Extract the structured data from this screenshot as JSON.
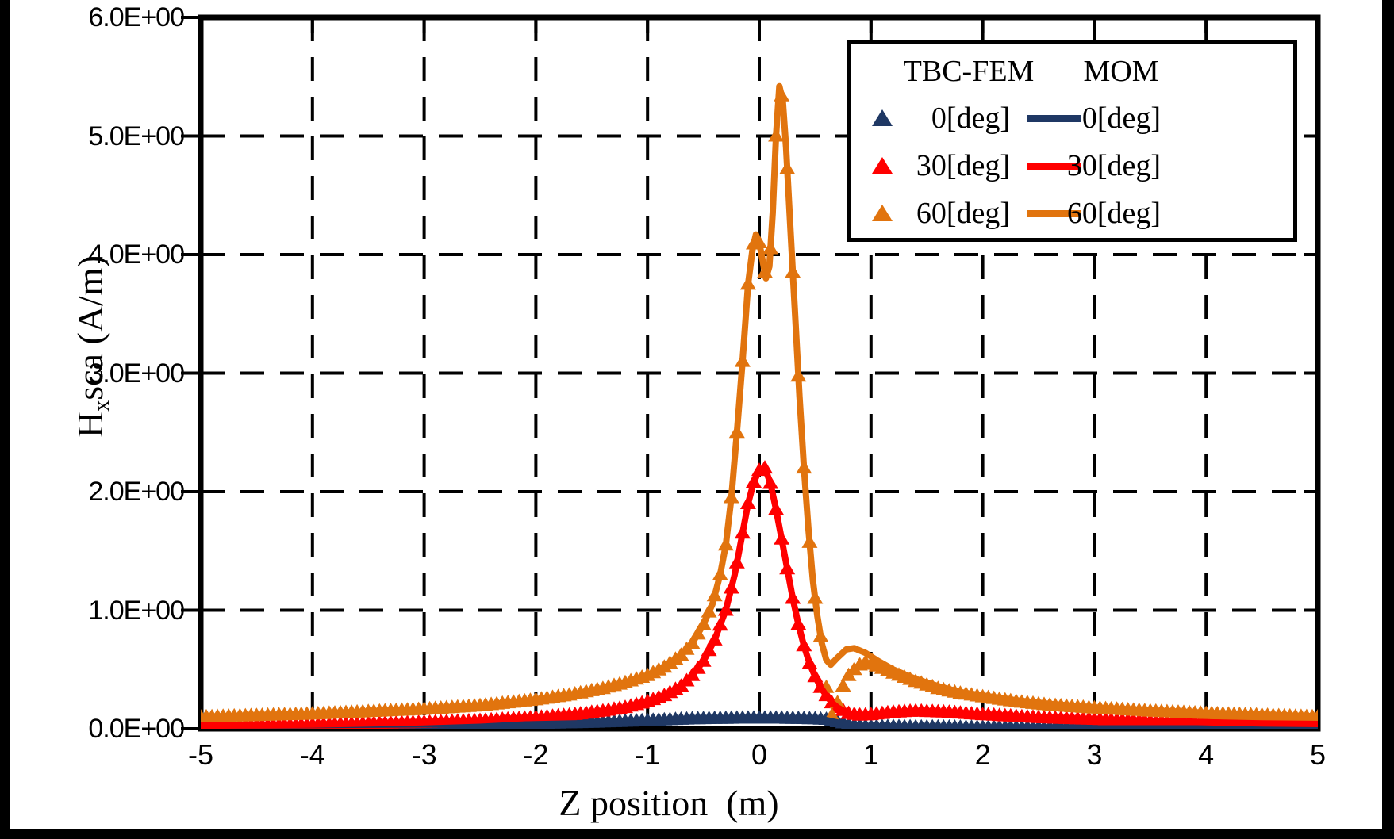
{
  "chart_data": {
    "type": "line",
    "title": "",
    "xlabel": "Z position  (m)",
    "ylabel_parts": {
      "base": "H",
      "sub": "x",
      "rest": "sca (A/m)"
    },
    "xlim": [
      -5,
      5
    ],
    "ylim": [
      0,
      6
    ],
    "x_ticks": {
      "values": [
        -5,
        -4,
        -3,
        -2,
        -1,
        0,
        1,
        2,
        3,
        4,
        5
      ],
      "labels": [
        "-5",
        "-4",
        "-3",
        "-2",
        "-1",
        "0",
        "1",
        "2",
        "3",
        "4",
        "5"
      ]
    },
    "y_ticks": {
      "values": [
        0,
        1,
        2,
        3,
        4,
        5,
        6
      ],
      "labels": [
        "0.0E+00",
        "1.0E+00",
        "2.0E+00",
        "3.0E+00",
        "4.0E+00",
        "5.0E+00",
        "6.0E+00"
      ]
    },
    "grid": {
      "style": "dashed",
      "x_lines": [
        -4,
        -3,
        -2,
        -1,
        0,
        1,
        2,
        3,
        4
      ],
      "y_lines": [
        1,
        2,
        3,
        4,
        5
      ]
    },
    "frame_color": "#000000",
    "background_color": "#FFFFFF",
    "page_border_color": "#000000",
    "legend": {
      "position": "top-right",
      "headers": [
        "TBC-FEM",
        "MOM"
      ],
      "rows": [
        {
          "fem_label": "0[deg]",
          "mom_label": "0[deg]",
          "color": "#1F3864"
        },
        {
          "fem_label": "30[deg]",
          "mom_label": "30[deg]",
          "color": "#FF0000"
        },
        {
          "fem_label": "60[deg]",
          "mom_label": "60[deg]",
          "color": "#E1740E"
        }
      ]
    },
    "marker": "triangle-up",
    "marker_step": 0.05,
    "series": [
      {
        "id": "fem-0deg",
        "group": "TBC-FEM",
        "label": "0[deg]",
        "render": "markers",
        "color": "#1F3864",
        "points": [
          [
            -5,
            0.02
          ],
          [
            -4,
            0.025
          ],
          [
            -3,
            0.03
          ],
          [
            -2.5,
            0.035
          ],
          [
            -2,
            0.045
          ],
          [
            -1.5,
            0.055
          ],
          [
            -1,
            0.07
          ],
          [
            -0.6,
            0.085
          ],
          [
            -0.2,
            0.09
          ],
          [
            0.2,
            0.09
          ],
          [
            0.5,
            0.085
          ],
          [
            0.6,
            0.08
          ],
          [
            0.7,
            0.06
          ],
          [
            0.8,
            0.04
          ],
          [
            0.9,
            0.025
          ],
          [
            1,
            0.02
          ],
          [
            1.5,
            0.015
          ],
          [
            2,
            0.012
          ],
          [
            3,
            0.01
          ],
          [
            4,
            0.01
          ],
          [
            5,
            0.01
          ]
        ]
      },
      {
        "id": "fem-30deg",
        "group": "TBC-FEM",
        "label": "30[deg]",
        "render": "markers",
        "color": "#FF0000",
        "points": [
          [
            -5,
            0.025
          ],
          [
            -4,
            0.035
          ],
          [
            -3,
            0.055
          ],
          [
            -2.5,
            0.07
          ],
          [
            -2,
            0.095
          ],
          [
            -1.7,
            0.115
          ],
          [
            -1.4,
            0.15
          ],
          [
            -1.2,
            0.18
          ],
          [
            -1,
            0.23
          ],
          [
            -0.85,
            0.28
          ],
          [
            -0.7,
            0.36
          ],
          [
            -0.6,
            0.45
          ],
          [
            -0.5,
            0.57
          ],
          [
            -0.4,
            0.75
          ],
          [
            -0.3,
            1.0
          ],
          [
            -0.22,
            1.3
          ],
          [
            -0.15,
            1.65
          ],
          [
            -0.1,
            1.9
          ],
          [
            -0.05,
            2.08
          ],
          [
            0,
            2.18
          ],
          [
            0.05,
            2.2
          ],
          [
            0.1,
            2.07
          ],
          [
            0.15,
            1.85
          ],
          [
            0.2,
            1.6
          ],
          [
            0.25,
            1.35
          ],
          [
            0.3,
            1.1
          ],
          [
            0.35,
            0.88
          ],
          [
            0.4,
            0.7
          ],
          [
            0.45,
            0.55
          ],
          [
            0.5,
            0.44
          ],
          [
            0.55,
            0.35
          ],
          [
            0.6,
            0.28
          ],
          [
            0.65,
            0.22
          ],
          [
            0.7,
            0.18
          ],
          [
            0.8,
            0.13
          ],
          [
            0.9,
            0.115
          ],
          [
            1,
            0.12
          ],
          [
            1.2,
            0.14
          ],
          [
            1.4,
            0.15
          ],
          [
            1.7,
            0.14
          ],
          [
            2,
            0.12
          ],
          [
            2.5,
            0.095
          ],
          [
            3,
            0.08
          ],
          [
            3.5,
            0.065
          ],
          [
            4,
            0.055
          ],
          [
            4.5,
            0.045
          ],
          [
            5,
            0.04
          ]
        ]
      },
      {
        "id": "fem-60deg",
        "group": "TBC-FEM",
        "label": "60[deg]",
        "render": "markers",
        "color": "#E1740E",
        "points": [
          [
            -5,
            0.1
          ],
          [
            -4,
            0.125
          ],
          [
            -3,
            0.165
          ],
          [
            -2.5,
            0.195
          ],
          [
            -2,
            0.245
          ],
          [
            -1.7,
            0.285
          ],
          [
            -1.4,
            0.34
          ],
          [
            -1.2,
            0.39
          ],
          [
            -1,
            0.45
          ],
          [
            -0.85,
            0.52
          ],
          [
            -0.7,
            0.62
          ],
          [
            -0.6,
            0.72
          ],
          [
            -0.5,
            0.88
          ],
          [
            -0.42,
            1.05
          ],
          [
            -0.35,
            1.3
          ],
          [
            -0.3,
            1.55
          ],
          [
            -0.25,
            1.95
          ],
          [
            -0.2,
            2.5
          ],
          [
            -0.15,
            3.1
          ],
          [
            -0.1,
            3.75
          ],
          [
            -0.06,
            4.05
          ],
          [
            -0.03,
            4.17
          ],
          [
            0,
            4.1
          ],
          [
            0.03,
            3.95
          ],
          [
            0.06,
            3.8
          ],
          [
            0.09,
            3.9
          ],
          [
            0.12,
            4.35
          ],
          [
            0.15,
            5.0
          ],
          [
            0.18,
            5.42
          ],
          [
            0.21,
            5.3
          ],
          [
            0.24,
            4.9
          ],
          [
            0.28,
            4.2
          ],
          [
            0.32,
            3.5
          ],
          [
            0.36,
            2.8
          ],
          [
            0.4,
            2.2
          ],
          [
            0.44,
            1.68
          ],
          [
            0.48,
            1.25
          ],
          [
            0.52,
            0.95
          ],
          [
            0.56,
            0.72
          ],
          [
            0.6,
            0.35
          ],
          [
            0.63,
            0.18
          ],
          [
            0.66,
            0.08
          ],
          [
            0.7,
            0.22
          ],
          [
            0.75,
            0.36
          ],
          [
            0.8,
            0.45
          ],
          [
            0.88,
            0.53
          ],
          [
            0.95,
            0.56
          ],
          [
            1.05,
            0.53
          ],
          [
            1.2,
            0.47
          ],
          [
            1.4,
            0.4
          ],
          [
            1.6,
            0.34
          ],
          [
            1.8,
            0.3
          ],
          [
            2,
            0.27
          ],
          [
            2.3,
            0.23
          ],
          [
            2.6,
            0.2
          ],
          [
            3,
            0.175
          ],
          [
            3.5,
            0.15
          ],
          [
            4,
            0.13
          ],
          [
            4.5,
            0.115
          ],
          [
            5,
            0.1
          ]
        ]
      },
      {
        "id": "mom-0deg",
        "group": "MOM",
        "label": "0[deg]",
        "render": "line",
        "color": "#1F3864",
        "points": [
          [
            -5,
            0.02
          ],
          [
            -4,
            0.025
          ],
          [
            -3,
            0.03
          ],
          [
            -2.5,
            0.035
          ],
          [
            -2,
            0.045
          ],
          [
            -1.5,
            0.055
          ],
          [
            -1,
            0.07
          ],
          [
            -0.6,
            0.085
          ],
          [
            -0.2,
            0.09
          ],
          [
            0.2,
            0.09
          ],
          [
            0.5,
            0.085
          ],
          [
            0.6,
            0.08
          ],
          [
            0.7,
            0.06
          ],
          [
            0.8,
            0.04
          ],
          [
            0.9,
            0.025
          ],
          [
            1,
            0.02
          ],
          [
            1.5,
            0.015
          ],
          [
            2,
            0.012
          ],
          [
            3,
            0.01
          ],
          [
            4,
            0.01
          ],
          [
            5,
            0.01
          ]
        ]
      },
      {
        "id": "mom-30deg",
        "group": "MOM",
        "label": "30[deg]",
        "render": "line",
        "color": "#FF0000",
        "points": [
          [
            -5,
            0.025
          ],
          [
            -4,
            0.035
          ],
          [
            -3,
            0.055
          ],
          [
            -2.5,
            0.07
          ],
          [
            -2,
            0.095
          ],
          [
            -1.7,
            0.115
          ],
          [
            -1.4,
            0.15
          ],
          [
            -1.2,
            0.18
          ],
          [
            -1,
            0.23
          ],
          [
            -0.85,
            0.28
          ],
          [
            -0.7,
            0.36
          ],
          [
            -0.6,
            0.45
          ],
          [
            -0.5,
            0.57
          ],
          [
            -0.4,
            0.75
          ],
          [
            -0.3,
            1.0
          ],
          [
            -0.22,
            1.3
          ],
          [
            -0.15,
            1.65
          ],
          [
            -0.1,
            1.9
          ],
          [
            -0.05,
            2.08
          ],
          [
            0,
            2.18
          ],
          [
            0.05,
            2.2
          ],
          [
            0.1,
            2.07
          ],
          [
            0.15,
            1.85
          ],
          [
            0.2,
            1.6
          ],
          [
            0.25,
            1.35
          ],
          [
            0.3,
            1.1
          ],
          [
            0.35,
            0.88
          ],
          [
            0.4,
            0.7
          ],
          [
            0.45,
            0.55
          ],
          [
            0.5,
            0.44
          ],
          [
            0.55,
            0.35
          ],
          [
            0.6,
            0.28
          ],
          [
            0.65,
            0.22
          ],
          [
            0.7,
            0.18
          ],
          [
            0.8,
            0.13
          ],
          [
            0.9,
            0.115
          ],
          [
            1,
            0.12
          ],
          [
            1.2,
            0.14
          ],
          [
            1.4,
            0.15
          ],
          [
            1.7,
            0.14
          ],
          [
            2,
            0.12
          ],
          [
            2.5,
            0.095
          ],
          [
            3,
            0.08
          ],
          [
            3.5,
            0.065
          ],
          [
            4,
            0.055
          ],
          [
            4.5,
            0.045
          ],
          [
            5,
            0.04
          ]
        ]
      },
      {
        "id": "mom-60deg",
        "group": "MOM",
        "label": "60[deg]",
        "render": "line",
        "color": "#E1740E",
        "points": [
          [
            -5,
            0.1
          ],
          [
            -4,
            0.125
          ],
          [
            -3,
            0.165
          ],
          [
            -2.5,
            0.195
          ],
          [
            -2,
            0.245
          ],
          [
            -1.7,
            0.285
          ],
          [
            -1.4,
            0.34
          ],
          [
            -1.2,
            0.39
          ],
          [
            -1,
            0.45
          ],
          [
            -0.85,
            0.52
          ],
          [
            -0.7,
            0.62
          ],
          [
            -0.6,
            0.72
          ],
          [
            -0.5,
            0.88
          ],
          [
            -0.42,
            1.05
          ],
          [
            -0.35,
            1.3
          ],
          [
            -0.3,
            1.55
          ],
          [
            -0.25,
            1.95
          ],
          [
            -0.2,
            2.5
          ],
          [
            -0.15,
            3.1
          ],
          [
            -0.1,
            3.75
          ],
          [
            -0.06,
            4.05
          ],
          [
            -0.03,
            4.17
          ],
          [
            0,
            4.1
          ],
          [
            0.03,
            3.95
          ],
          [
            0.06,
            3.8
          ],
          [
            0.09,
            3.9
          ],
          [
            0.12,
            4.35
          ],
          [
            0.15,
            5.0
          ],
          [
            0.18,
            5.42
          ],
          [
            0.21,
            5.3
          ],
          [
            0.24,
            4.9
          ],
          [
            0.28,
            4.2
          ],
          [
            0.32,
            3.5
          ],
          [
            0.36,
            2.8
          ],
          [
            0.4,
            2.2
          ],
          [
            0.44,
            1.68
          ],
          [
            0.48,
            1.25
          ],
          [
            0.52,
            0.95
          ],
          [
            0.56,
            0.72
          ],
          [
            0.6,
            0.58
          ],
          [
            0.64,
            0.54
          ],
          [
            0.7,
            0.6
          ],
          [
            0.78,
            0.67
          ],
          [
            0.85,
            0.68
          ],
          [
            0.95,
            0.64
          ],
          [
            1.05,
            0.58
          ],
          [
            1.2,
            0.5
          ],
          [
            1.4,
            0.42
          ],
          [
            1.6,
            0.36
          ],
          [
            1.8,
            0.31
          ],
          [
            2,
            0.28
          ],
          [
            2.3,
            0.24
          ],
          [
            2.6,
            0.21
          ],
          [
            3,
            0.18
          ],
          [
            3.5,
            0.155
          ],
          [
            4,
            0.135
          ],
          [
            4.5,
            0.12
          ],
          [
            5,
            0.105
          ]
        ]
      }
    ]
  }
}
